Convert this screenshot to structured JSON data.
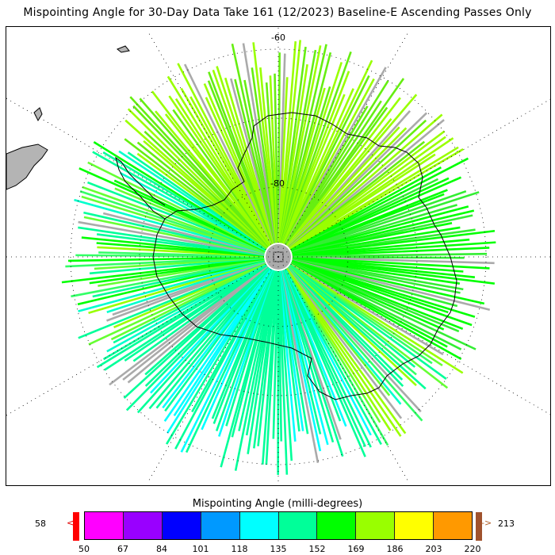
{
  "title": "Mispointing Angle for 30-Day Data Take 161 (12/2023) Baseline-E Ascending Passes Only",
  "map": {
    "projection": "south-polar-stereographic",
    "lat_labels": [
      "-60",
      "-80"
    ],
    "colors": {
      "land_outline": "#000000",
      "other_land": "#b4b4b4",
      "no_data_pole": "#aaaaaa"
    }
  },
  "colorbar": {
    "title": "Mispointing Angle (milli-degrees)",
    "min_value": "58",
    "max_value": "213",
    "under_arrow": "<",
    "over_arrow": "->",
    "ticks": [
      "50",
      "67",
      "84",
      "101",
      "118",
      "135",
      "152",
      "169",
      "186",
      "203",
      "220"
    ],
    "colors": [
      "#ff00ff",
      "#9900ff",
      "#0000ff",
      "#0099ff",
      "#00ffff",
      "#00ff99",
      "#00ff00",
      "#99ff00",
      "#ffff00",
      "#ff9900"
    ],
    "under_color": "#ff0000",
    "over_color": "#a0522d"
  }
}
